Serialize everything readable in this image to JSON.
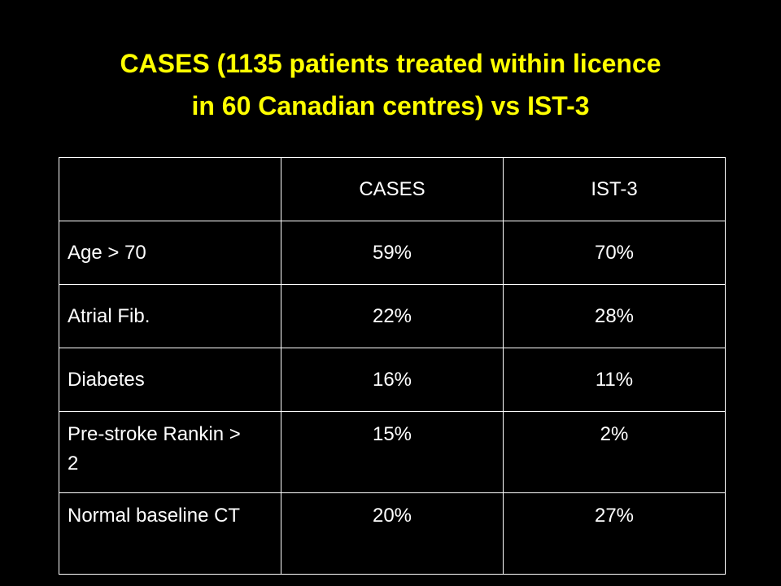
{
  "header": {
    "title": [
      "CASES (1135 patients treated within licence",
      "in 60 Canadian centres) vs IST-3"
    ]
  },
  "table": {
    "columns": [
      "",
      "CASES",
      "IST-3"
    ],
    "rows": [
      [
        "Age > 70",
        "59%",
        "70%"
      ],
      [
        "Atrial Fib.",
        "22%",
        "28%"
      ],
      [
        "Diabetes",
        "16%",
        "11%"
      ],
      [
        "Pre-stroke Rankin > 2",
        "15%",
        "2%"
      ],
      [
        "Normal baseline CT",
        "20%",
        "27%"
      ]
    ]
  }
}
